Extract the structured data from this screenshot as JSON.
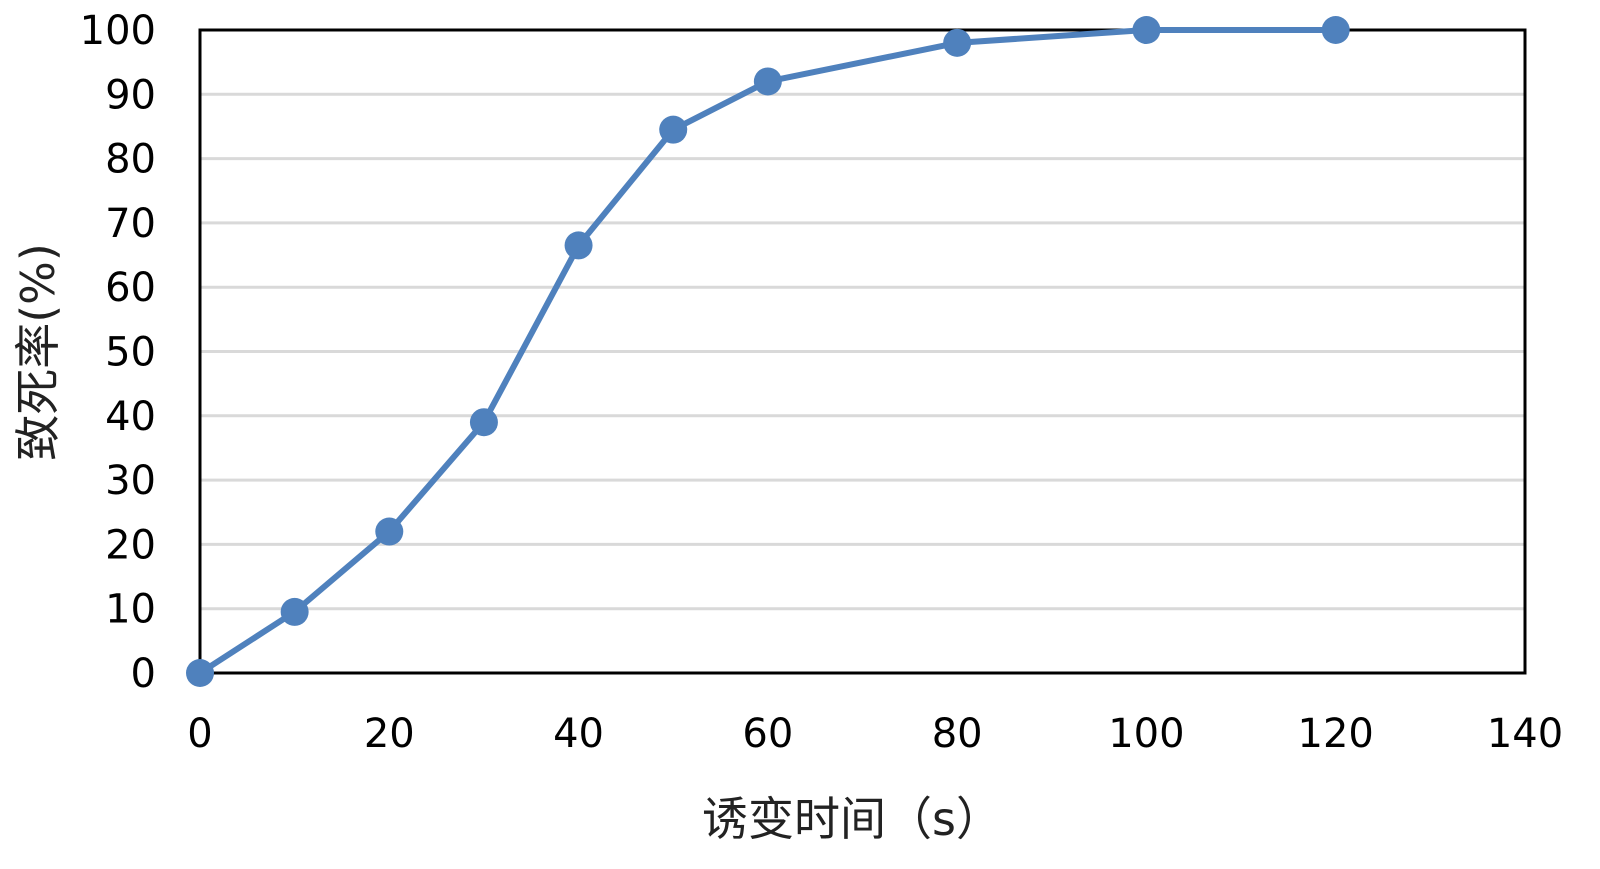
{
  "chart_data": {
    "type": "line",
    "title": "",
    "xlabel": "诱变时间（s）",
    "ylabel": "致死率(%)",
    "xlim": [
      0,
      140
    ],
    "ylim": [
      0,
      100
    ],
    "x_ticks": [
      0,
      20,
      40,
      60,
      80,
      100,
      120,
      140
    ],
    "y_ticks": [
      0,
      10,
      20,
      30,
      40,
      50,
      60,
      70,
      80,
      90,
      100
    ],
    "grid": "horizontal",
    "legend": "none",
    "series": [
      {
        "color": "#4f81bd",
        "points": [
          {
            "x": 0,
            "y": 0
          },
          {
            "x": 10,
            "y": 9.5
          },
          {
            "x": 20,
            "y": 22
          },
          {
            "x": 30,
            "y": 39
          },
          {
            "x": 40,
            "y": 66.5
          },
          {
            "x": 50,
            "y": 84.5
          },
          {
            "x": 60,
            "y": 92
          },
          {
            "x": 80,
            "y": 98
          },
          {
            "x": 100,
            "y": 100
          },
          {
            "x": 120,
            "y": 100
          }
        ]
      }
    ]
  }
}
